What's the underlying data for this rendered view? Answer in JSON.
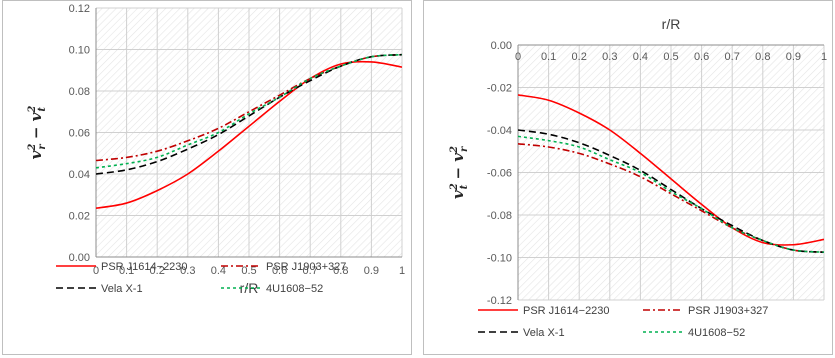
{
  "chart_data": [
    {
      "type": "line",
      "xlabel": "r/R",
      "ylabel": {
        "base": "v",
        "sub1": "r",
        "sub2": "t"
      },
      "xlim": [
        0,
        1
      ],
      "ylim": [
        0,
        0.12
      ],
      "x_ticks": [
        "0",
        "0.1",
        "0.2",
        "0.3",
        "0.4",
        "0.5",
        "0.6",
        "0.7",
        "0.8",
        "0.9",
        "1"
      ],
      "y_ticks": [
        "0.00",
        "0.02",
        "0.04",
        "0.06",
        "0.08",
        "0.10",
        "0.12"
      ],
      "x": [
        0,
        0.1,
        0.2,
        0.3,
        0.4,
        0.5,
        0.6,
        0.7,
        0.8,
        0.9,
        1.0
      ],
      "series": [
        {
          "name": "PSR J1614−2230",
          "color": "#ff0000",
          "dash": "solid",
          "values": [
            0.0235,
            0.026,
            0.032,
            0.04,
            0.051,
            0.063,
            0.075,
            0.086,
            0.093,
            0.094,
            0.0915
          ]
        },
        {
          "name": "PSR J1903+327",
          "color": "#c00000",
          "dash": "dashdot",
          "values": [
            0.0465,
            0.048,
            0.051,
            0.056,
            0.062,
            0.07,
            0.078,
            0.086,
            0.092,
            0.0965,
            0.0975
          ]
        },
        {
          "name": "Vela X-1",
          "color": "#000000",
          "dash": "dash",
          "values": [
            0.04,
            0.042,
            0.046,
            0.052,
            0.059,
            0.068,
            0.077,
            0.085,
            0.092,
            0.0965,
            0.0975
          ]
        },
        {
          "name": "4U1608−52",
          "color": "#00b050",
          "dash": "dot",
          "values": [
            0.043,
            0.045,
            0.048,
            0.054,
            0.06,
            0.069,
            0.077,
            0.086,
            0.092,
            0.0965,
            0.0975
          ]
        }
      ],
      "legend_position": "bottom",
      "grid": true
    },
    {
      "type": "line",
      "xlabel": "r/R",
      "ylabel": {
        "base": "v",
        "sub1": "t",
        "sub2": "r"
      },
      "xlim": [
        0,
        1
      ],
      "ylim": [
        -0.12,
        0
      ],
      "x_ticks": [
        "0",
        "0.1",
        "0.2",
        "0.3",
        "0.4",
        "0.5",
        "0.6",
        "0.7",
        "0.8",
        "0.9",
        "1"
      ],
      "y_ticks": [
        "0.00",
        "-0.02",
        "-0.04",
        "-0.06",
        "-0.08",
        "-0.10",
        "-0.12"
      ],
      "x": [
        0,
        0.1,
        0.2,
        0.3,
        0.4,
        0.5,
        0.6,
        0.7,
        0.8,
        0.9,
        1.0
      ],
      "series": [
        {
          "name": "PSR J1614−2230",
          "color": "#ff0000",
          "dash": "solid",
          "values": [
            -0.0235,
            -0.026,
            -0.032,
            -0.04,
            -0.051,
            -0.063,
            -0.075,
            -0.086,
            -0.093,
            -0.094,
            -0.0915
          ]
        },
        {
          "name": "PSR J1903+327",
          "color": "#c00000",
          "dash": "dashdot",
          "values": [
            -0.0465,
            -0.048,
            -0.051,
            -0.056,
            -0.062,
            -0.07,
            -0.078,
            -0.086,
            -0.092,
            -0.0965,
            -0.0975
          ]
        },
        {
          "name": "Vela X-1",
          "color": "#000000",
          "dash": "dash",
          "values": [
            -0.04,
            -0.042,
            -0.046,
            -0.052,
            -0.059,
            -0.068,
            -0.077,
            -0.085,
            -0.092,
            -0.0965,
            -0.0975
          ]
        },
        {
          "name": "4U1608−52",
          "color": "#00b050",
          "dash": "dot",
          "values": [
            -0.043,
            -0.045,
            -0.048,
            -0.054,
            -0.06,
            -0.069,
            -0.077,
            -0.086,
            -0.092,
            -0.0965,
            -0.0975
          ]
        }
      ],
      "legend_position": "bottom",
      "grid": true
    }
  ]
}
